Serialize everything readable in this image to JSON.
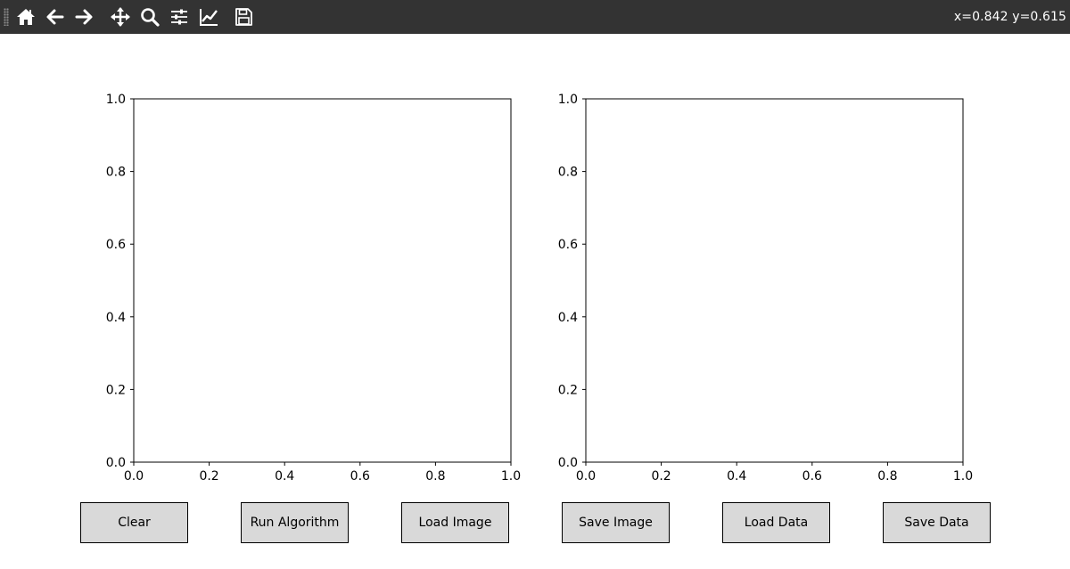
{
  "toolbar": {
    "icons": [
      "home-icon",
      "back-icon",
      "forward-icon",
      "pan-icon",
      "zoom-icon",
      "configure-subplots-icon",
      "edit-axis-icon",
      "save-icon"
    ],
    "coordinates": "x=0.842 y=0.615",
    "bg_color": "#333333",
    "icon_color": "#ffffff"
  },
  "chart_data": [
    {
      "type": "scatter",
      "title": "",
      "xlabel": "",
      "ylabel": "",
      "xlim": [
        0,
        1
      ],
      "ylim": [
        0,
        1
      ],
      "xticks": [
        "0.0",
        "0.2",
        "0.4",
        "0.6",
        "0.8",
        "1.0"
      ],
      "yticks": [
        "0.0",
        "0.2",
        "0.4",
        "0.6",
        "0.8",
        "1.0"
      ],
      "series": [],
      "grid": false
    },
    {
      "type": "scatter",
      "title": "",
      "xlabel": "",
      "ylabel": "",
      "xlim": [
        0,
        1
      ],
      "ylim": [
        0,
        1
      ],
      "xticks": [
        "0.0",
        "0.2",
        "0.4",
        "0.6",
        "0.8",
        "1.0"
      ],
      "yticks": [
        "0.0",
        "0.2",
        "0.4",
        "0.6",
        "0.8",
        "1.0"
      ],
      "series": [],
      "grid": false
    }
  ],
  "buttons": {
    "clear": "Clear",
    "run_algorithm": "Run Algorithm",
    "load_image": "Load Image",
    "save_image": "Save Image",
    "load_data": "Load Data",
    "save_data": "Save Data",
    "face_color": "#d9d9d9"
  }
}
